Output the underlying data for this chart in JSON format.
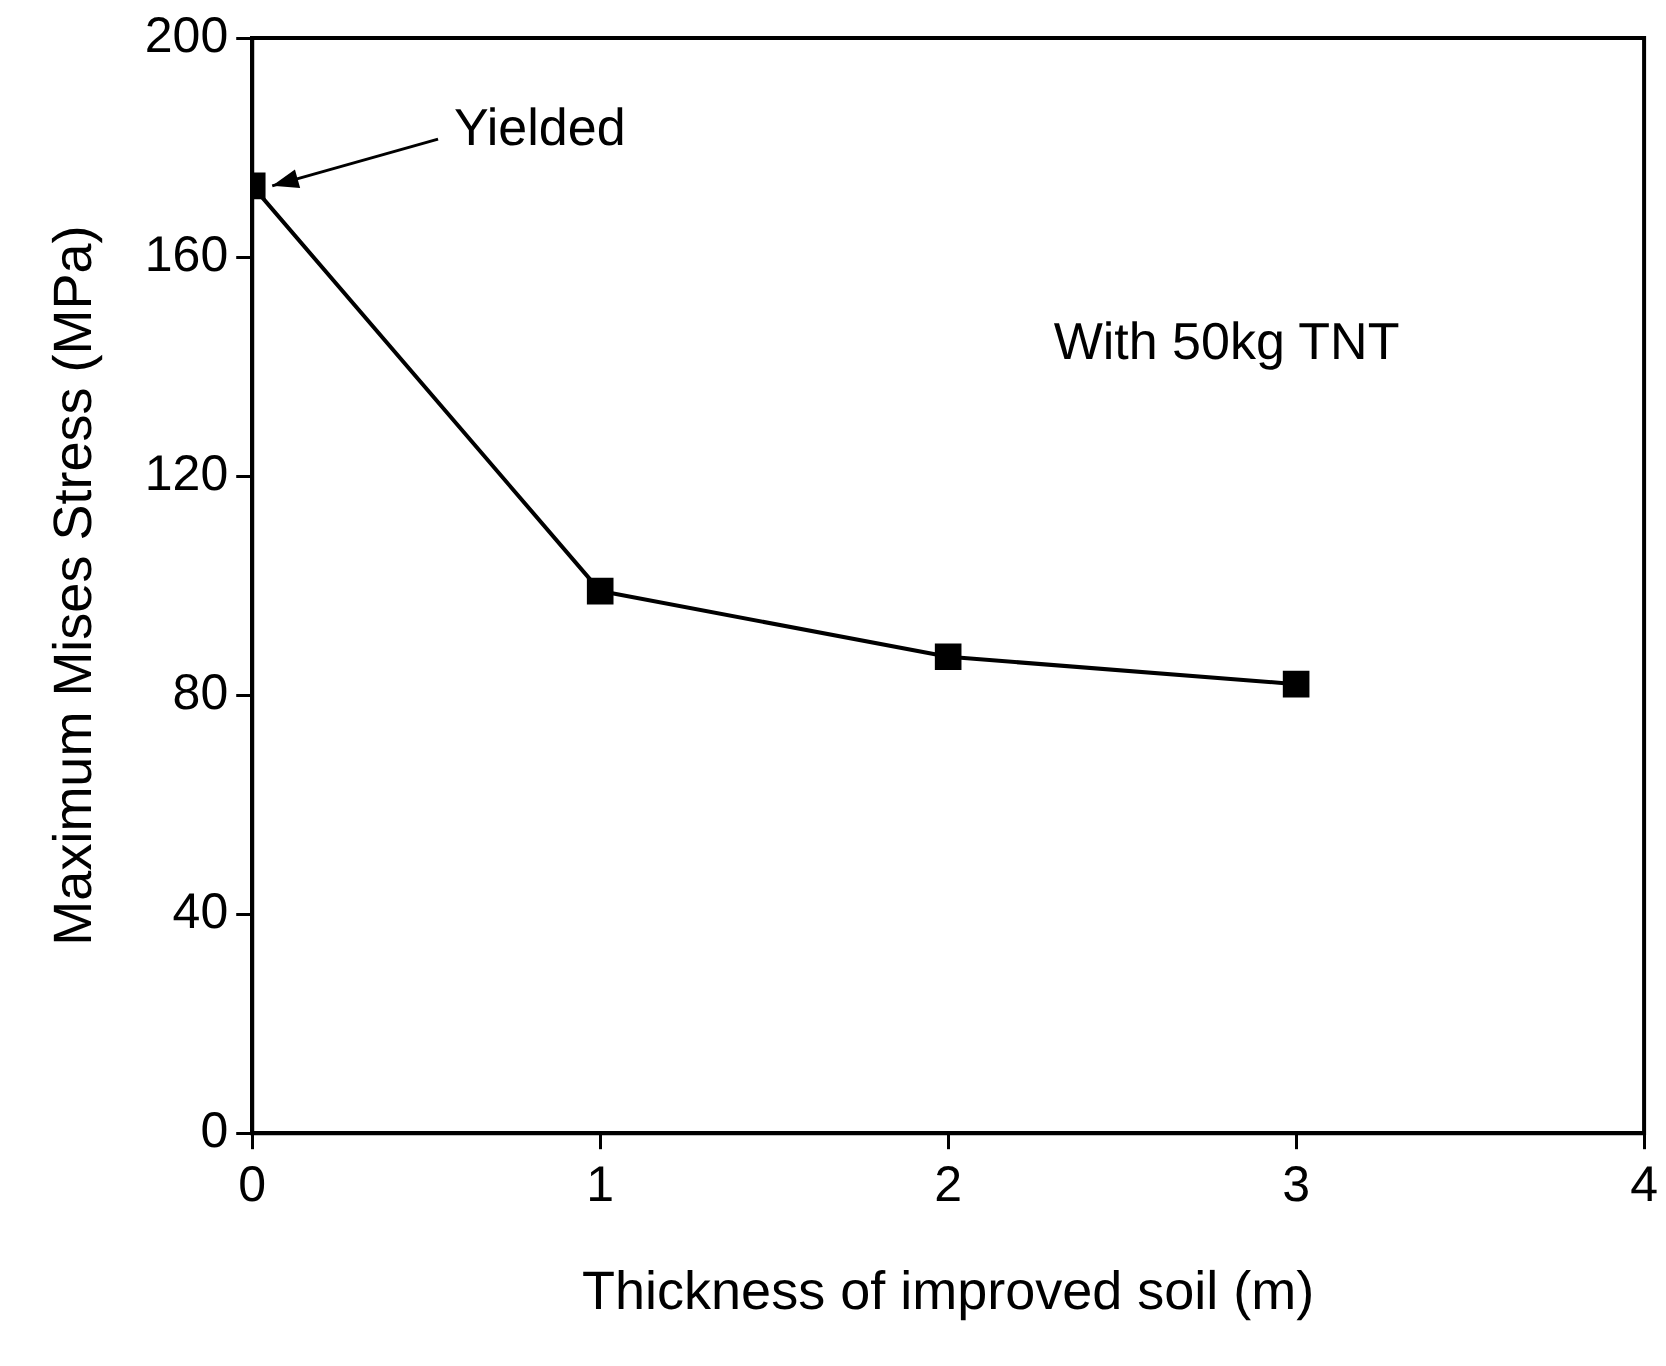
{
  "chart_data": {
    "type": "line",
    "xlabel": "Thickness of improved soil (m)",
    "ylabel": "Maximum Mises Stress (MPa)",
    "x": [
      0,
      1,
      2,
      3
    ],
    "values": [
      173,
      99,
      87,
      82
    ],
    "color": "#000000",
    "marker": "square",
    "line_style": "solid",
    "grid": false,
    "legend": false,
    "xlim": [
      0,
      4
    ],
    "xticks": [
      0,
      1,
      2,
      3,
      4
    ],
    "ylim": [
      0,
      200
    ],
    "yticks": [
      0,
      40,
      80,
      120,
      160,
      200
    ],
    "annotations": [
      "Yielded",
      "With 50kg TNT"
    ]
  }
}
